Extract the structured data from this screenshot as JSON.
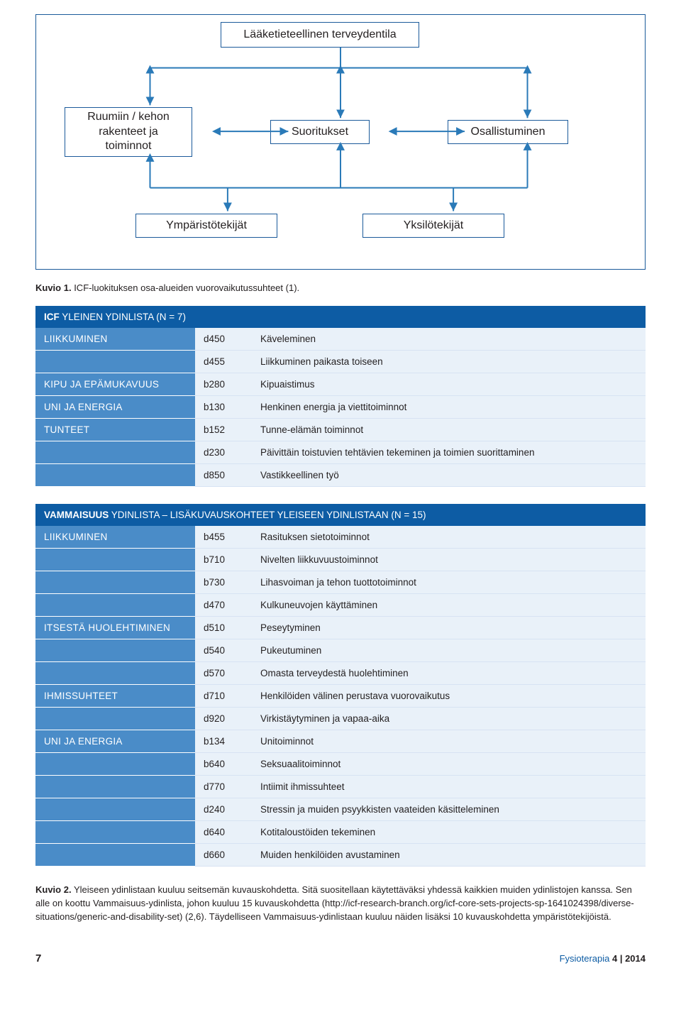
{
  "diagram": {
    "top": "Lääketieteellinen terveydentila",
    "left": "Ruumiin / kehon\nrakenteet ja\ntoiminnot",
    "mid": "Suoritukset",
    "right": "Osallistuminen",
    "env": "Ympäristötekijät",
    "pers": "Yksilötekijät",
    "stroke": "#1b5a9a",
    "arrow": "#2a7ab8"
  },
  "caption1": {
    "bold": "Kuvio 1.",
    "text": " ICF-luokituksen osa-alueiden vuorovaikutussuhteet (1)."
  },
  "table1": {
    "header_bold": "ICF",
    "header_rest": " YLEINEN YDINLISTA (N = 7)",
    "rows": [
      {
        "cat": "LIIKKUMINEN",
        "code": "d450",
        "desc": "Käveleminen"
      },
      {
        "cat": "",
        "code": "d455",
        "desc": "Liikkuminen paikasta toiseen"
      },
      {
        "cat": "KIPU JA EPÄMUKAVUUS",
        "code": "b280",
        "desc": "Kipuaistimus"
      },
      {
        "cat": "UNI JA ENERGIA",
        "code": "b130",
        "desc": "Henkinen energia ja viettitoiminnot"
      },
      {
        "cat": "TUNTEET",
        "code": "b152",
        "desc": "Tunne-elämän toiminnot"
      },
      {
        "cat": "",
        "code": "d230",
        "desc": "Päivittäin toistuvien tehtävien tekeminen ja toimien suorittaminen"
      },
      {
        "cat": "",
        "code": "d850",
        "desc": "Vastikkeellinen työ"
      }
    ]
  },
  "table2": {
    "header_bold": "VAMMAISUUS",
    "header_rest": " YDINLISTA – LISÄKUVAUSKOHTEET YLEISEEN YDINLISTAAN (N = 15)",
    "rows": [
      {
        "cat": "LIIKKUMINEN",
        "code": "b455",
        "desc": "Rasituksen sietotoiminnot"
      },
      {
        "cat": "",
        "code": "b710",
        "desc": "Nivelten liikkuvuustoiminnot"
      },
      {
        "cat": "",
        "code": "b730",
        "desc": "Lihasvoiman ja tehon tuottotoiminnot"
      },
      {
        "cat": "",
        "code": "d470",
        "desc": "Kulkuneuvojen käyttäminen"
      },
      {
        "cat": "ITSESTÄ HUOLEHTIMINEN",
        "code": "d510",
        "desc": "Peseytyminen"
      },
      {
        "cat": "",
        "code": "d540",
        "desc": "Pukeutuminen"
      },
      {
        "cat": "",
        "code": "d570",
        "desc": "Omasta terveydestä huolehtiminen"
      },
      {
        "cat": "IHMISSUHTEET",
        "code": "d710",
        "desc": "Henkilöiden välinen perustava vuorovaikutus"
      },
      {
        "cat": "",
        "code": "d920",
        "desc": "Virkistäytyminen ja vapaa-aika"
      },
      {
        "cat": "UNI JA ENERGIA",
        "code": "b134",
        "desc": "Unitoiminnot"
      },
      {
        "cat": "",
        "code": "b640",
        "desc": "Seksuaalitoiminnot"
      },
      {
        "cat": "",
        "code": "d770",
        "desc": "Intiimit ihmissuhteet"
      },
      {
        "cat": "",
        "code": "d240",
        "desc": "Stressin ja muiden psyykkisten vaateiden käsitteleminen"
      },
      {
        "cat": "",
        "code": "d640",
        "desc": "Kotitaloustöiden tekeminen"
      },
      {
        "cat": "",
        "code": "d660",
        "desc": "Muiden henkilöiden avustaminen"
      }
    ]
  },
  "caption2": {
    "bold": "Kuvio 2.",
    "text": " Yleiseen ydinlistaan kuuluu seitsemän kuvauskohdetta. Sitä suositellaan käytettäväksi yhdessä kaikkien muiden ydinlistojen kanssa. Sen alle on koottu Vammaisuus-ydinlista, johon kuuluu 15 kuvauskohdetta (http://icf-research-branch.org/icf-core-sets-projects-sp-1641024398/diverse-situations/generic-and-disability-set) (2,6). Täydelliseen Vammaisuus-ydinlistaan kuuluu näiden lisäksi 10 kuvauskohdetta ympäristötekijöistä."
  },
  "footer": {
    "page": "7",
    "journal_name": "Fysioterapia",
    "issue": " 4 | 2014"
  },
  "colors": {
    "header_bg": "#0d5ca4",
    "cat_bg": "#4a8cc8",
    "cell_bg": "#e9f1f9",
    "border": "#d7e3f3"
  }
}
